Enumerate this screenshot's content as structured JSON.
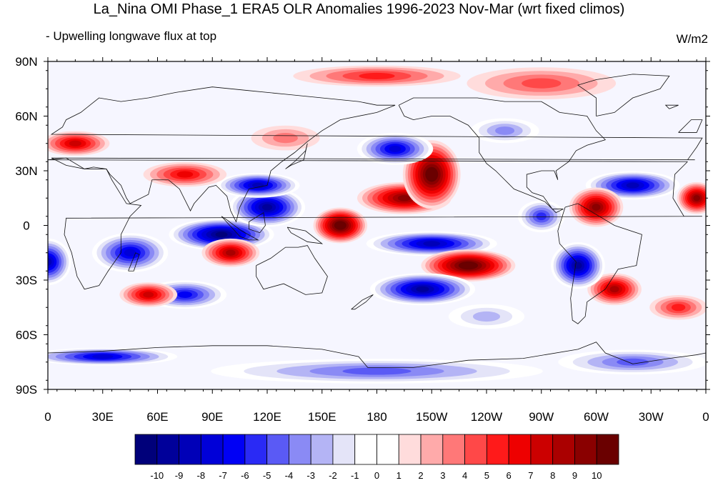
{
  "title": "La_Nina OMI Phase_1 ERA5 OLR Anomalies 1996-2023 Nov-Mar (wrt fixed climos)",
  "subtitle": "- Upwelling longwave flux at top",
  "units": "W/m2",
  "map": {
    "lat_ticks": [
      "90N",
      "60N",
      "30N",
      "0",
      "30S",
      "60S",
      "90S"
    ],
    "lon_ticks": [
      "0",
      "30E",
      "60E",
      "90E",
      "120E",
      "150E",
      "180",
      "150W",
      "120W",
      "90W",
      "60W",
      "30W",
      "0"
    ],
    "anomaly_regions": [
      {
        "lon": 0,
        "lat": -20,
        "rlon": 12,
        "rlat": 12,
        "value": -9
      },
      {
        "lon": 45,
        "lat": -15,
        "rlon": 20,
        "rlat": 10,
        "value": -8
      },
      {
        "lon": 95,
        "lat": -5,
        "rlon": 28,
        "rlat": 8,
        "value": -11
      },
      {
        "lon": 120,
        "lat": 10,
        "rlon": 20,
        "rlat": 10,
        "value": -10
      },
      {
        "lon": 115,
        "lat": 22,
        "rlon": 22,
        "rlat": 6,
        "value": -9
      },
      {
        "lon": 160,
        "lat": 0,
        "rlon": 14,
        "rlat": 9,
        "value": 11
      },
      {
        "lon": 195,
        "lat": 15,
        "rlon": 25,
        "rlat": 8,
        "value": 9
      },
      {
        "lon": 210,
        "lat": 28,
        "rlon": 15,
        "rlat": 18,
        "value": 11
      },
      {
        "lon": 190,
        "lat": 42,
        "rlon": 20,
        "rlat": 8,
        "value": -8
      },
      {
        "lon": 210,
        "lat": -10,
        "rlon": 35,
        "rlat": 6,
        "value": -9
      },
      {
        "lon": 230,
        "lat": -22,
        "rlon": 25,
        "rlat": 8,
        "value": 11
      },
      {
        "lon": 205,
        "lat": -35,
        "rlon": 28,
        "rlat": 8,
        "value": -10
      },
      {
        "lon": 100,
        "lat": -15,
        "rlon": 15,
        "rlat": 7,
        "value": 8
      },
      {
        "lon": 75,
        "lat": -38,
        "rlon": 22,
        "rlat": 7,
        "value": -7
      },
      {
        "lon": 55,
        "lat": -38,
        "rlon": 15,
        "rlat": 6,
        "value": 7
      },
      {
        "lon": 320,
        "lat": 22,
        "rlon": 25,
        "rlat": 7,
        "value": -9
      },
      {
        "lon": 300,
        "lat": 10,
        "rlon": 14,
        "rlat": 10,
        "value": 9
      },
      {
        "lon": 355,
        "lat": 15,
        "rlon": 10,
        "rlat": 8,
        "value": 9
      },
      {
        "lon": 310,
        "lat": -35,
        "rlon": 14,
        "rlat": 8,
        "value": 8
      },
      {
        "lon": 290,
        "lat": -22,
        "rlon": 14,
        "rlat": 12,
        "value": -10
      },
      {
        "lon": 15,
        "lat": 45,
        "rlon": 18,
        "rlat": 6,
        "value": 7
      },
      {
        "lon": 75,
        "lat": 28,
        "rlon": 22,
        "rlat": 6,
        "value": 6
      },
      {
        "lon": 180,
        "lat": 82,
        "rlon": 45,
        "rlat": 5,
        "value": 5
      },
      {
        "lon": 270,
        "lat": 78,
        "rlon": 40,
        "rlat": 8,
        "value": 4
      },
      {
        "lon": 180,
        "lat": -80,
        "rlon": 90,
        "rlat": 6,
        "value": -5
      },
      {
        "lon": 30,
        "lat": -72,
        "rlon": 40,
        "rlat": 4,
        "value": -8
      },
      {
        "lon": 320,
        "lat": -75,
        "rlon": 40,
        "rlat": 6,
        "value": -5
      },
      {
        "lon": 250,
        "lat": 52,
        "rlon": 18,
        "rlat": 6,
        "value": -4
      },
      {
        "lon": 130,
        "lat": 48,
        "rlon": 18,
        "rlat": 6,
        "value": 3
      },
      {
        "lon": 270,
        "lat": 5,
        "rlon": 12,
        "rlat": 8,
        "value": -6
      },
      {
        "lon": 345,
        "lat": -45,
        "rlon": 15,
        "rlat": 6,
        "value": 5
      },
      {
        "lon": 240,
        "lat": -50,
        "rlon": 20,
        "rlat": 6,
        "value": -3
      }
    ]
  },
  "colorbar": {
    "labels": [
      "-10",
      "-9",
      "-8",
      "-7",
      "-6",
      "-5",
      "-4",
      "-3",
      "-2",
      "-1",
      "0",
      "1",
      "2",
      "3",
      "4",
      "5",
      "6",
      "7",
      "8",
      "9",
      "10"
    ],
    "colors": [
      "#00007a",
      "#00009a",
      "#0000b8",
      "#0000d8",
      "#0000f5",
      "#2a2af5",
      "#5a5af5",
      "#8a8af5",
      "#b4b4f5",
      "#e4e4f8",
      "#ffffff",
      "#ffffff",
      "#ffdcdc",
      "#ffaaaa",
      "#ff7878",
      "#ff4848",
      "#ff1a1a",
      "#ee0000",
      "#cc0000",
      "#aa0000",
      "#8a0000",
      "#6a0000"
    ]
  }
}
